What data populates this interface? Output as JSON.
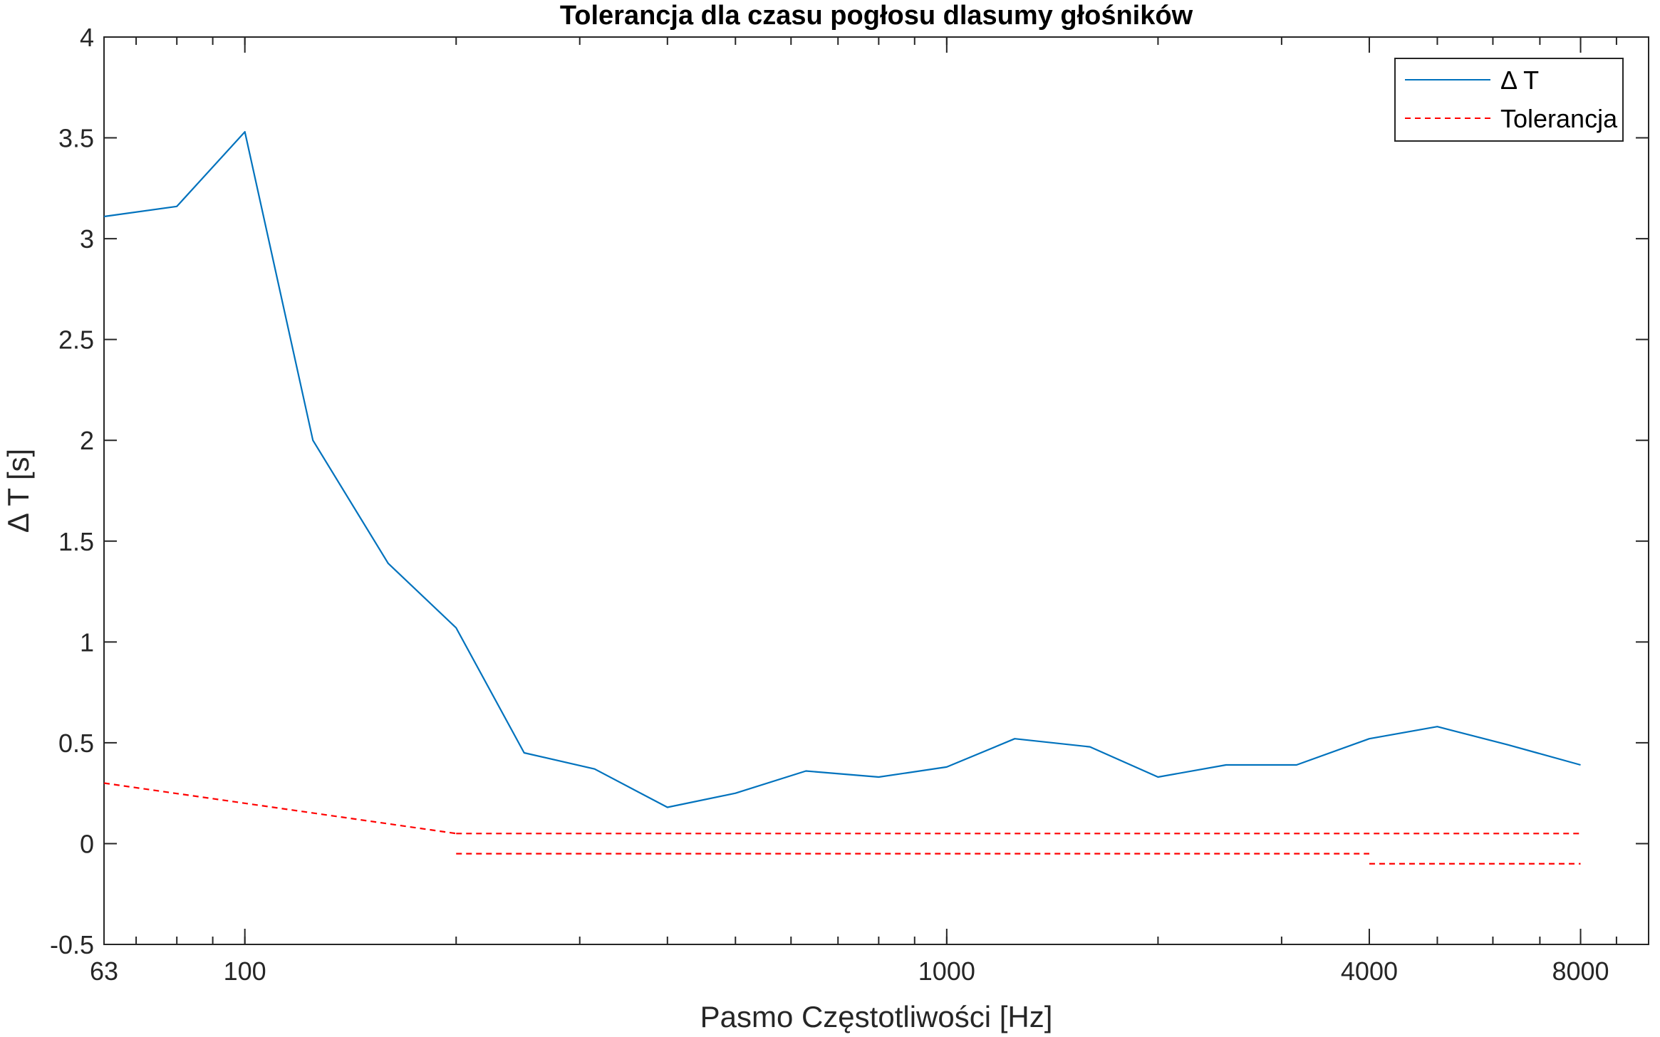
{
  "chart_data": {
    "type": "line",
    "title": "Tolerancja dla czasu pogłosu dlasumy głośników",
    "xlabel": "Pasmo Częstotliwości [Hz]",
    "ylabel": "Δ T [s]",
    "x_scale": "log",
    "xlim": [
      63,
      10000
    ],
    "ylim": [
      -0.5,
      4
    ],
    "x_ticks": [
      63,
      100,
      1000,
      4000,
      8000
    ],
    "x_tick_labels": [
      "63",
      "100",
      "1000",
      "4000",
      "8000"
    ],
    "y_ticks": [
      -0.5,
      0,
      0.5,
      1,
      1.5,
      2,
      2.5,
      3,
      3.5,
      4
    ],
    "y_tick_labels": [
      "-0.5",
      "0",
      "0.5",
      "1",
      "1.5",
      "2",
      "2.5",
      "3",
      "3.5",
      "4"
    ],
    "grid": false,
    "legend_position": "top-right",
    "series": [
      {
        "name": "Δ T",
        "color": "#0072bd",
        "style": "solid",
        "x": [
          63,
          80,
          100,
          125,
          160,
          200,
          250,
          315,
          400,
          500,
          630,
          800,
          1000,
          1250,
          1600,
          2000,
          2500,
          3150,
          4000,
          5000,
          6300,
          8000
        ],
        "y": [
          3.11,
          3.16,
          3.53,
          2.0,
          1.39,
          1.07,
          0.45,
          0.37,
          0.18,
          0.25,
          0.36,
          0.33,
          0.38,
          0.52,
          0.48,
          0.33,
          0.39,
          0.39,
          0.52,
          0.58,
          0.49,
          0.39
        ]
      },
      {
        "name": "Tolerancja",
        "color": "#ff0000",
        "style": "dashed",
        "segments": [
          {
            "x": [
              63,
              200
            ],
            "y": [
              0.3,
              0.05
            ]
          },
          {
            "x": [
              200,
              8000
            ],
            "y": [
              0.05,
              0.05
            ]
          },
          {
            "x": [
              200,
              4000
            ],
            "y": [
              -0.05,
              -0.05
            ]
          },
          {
            "x": [
              4000,
              8000
            ],
            "y": [
              -0.1,
              -0.1
            ]
          }
        ]
      }
    ]
  }
}
